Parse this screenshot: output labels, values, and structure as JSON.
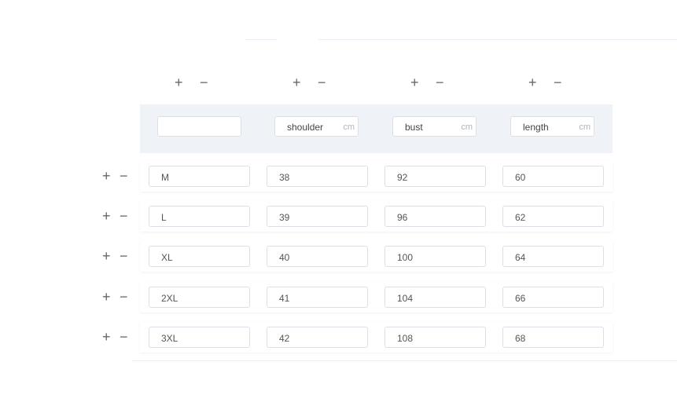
{
  "controls": {
    "add": "+",
    "remove": "−"
  },
  "header": {
    "columns": [
      {
        "label": "",
        "unit": ""
      },
      {
        "label": "shoulder",
        "unit": "cm"
      },
      {
        "label": "bust",
        "unit": "cm"
      },
      {
        "label": "length",
        "unit": "cm"
      }
    ]
  },
  "rows": [
    [
      "M",
      "38",
      "92",
      "60"
    ],
    [
      "L",
      "39",
      "96",
      "62"
    ],
    [
      "XL",
      "40",
      "100",
      "64"
    ],
    [
      "2XL",
      "41",
      "104",
      "66"
    ],
    [
      "3XL",
      "42",
      "108",
      "68"
    ]
  ]
}
